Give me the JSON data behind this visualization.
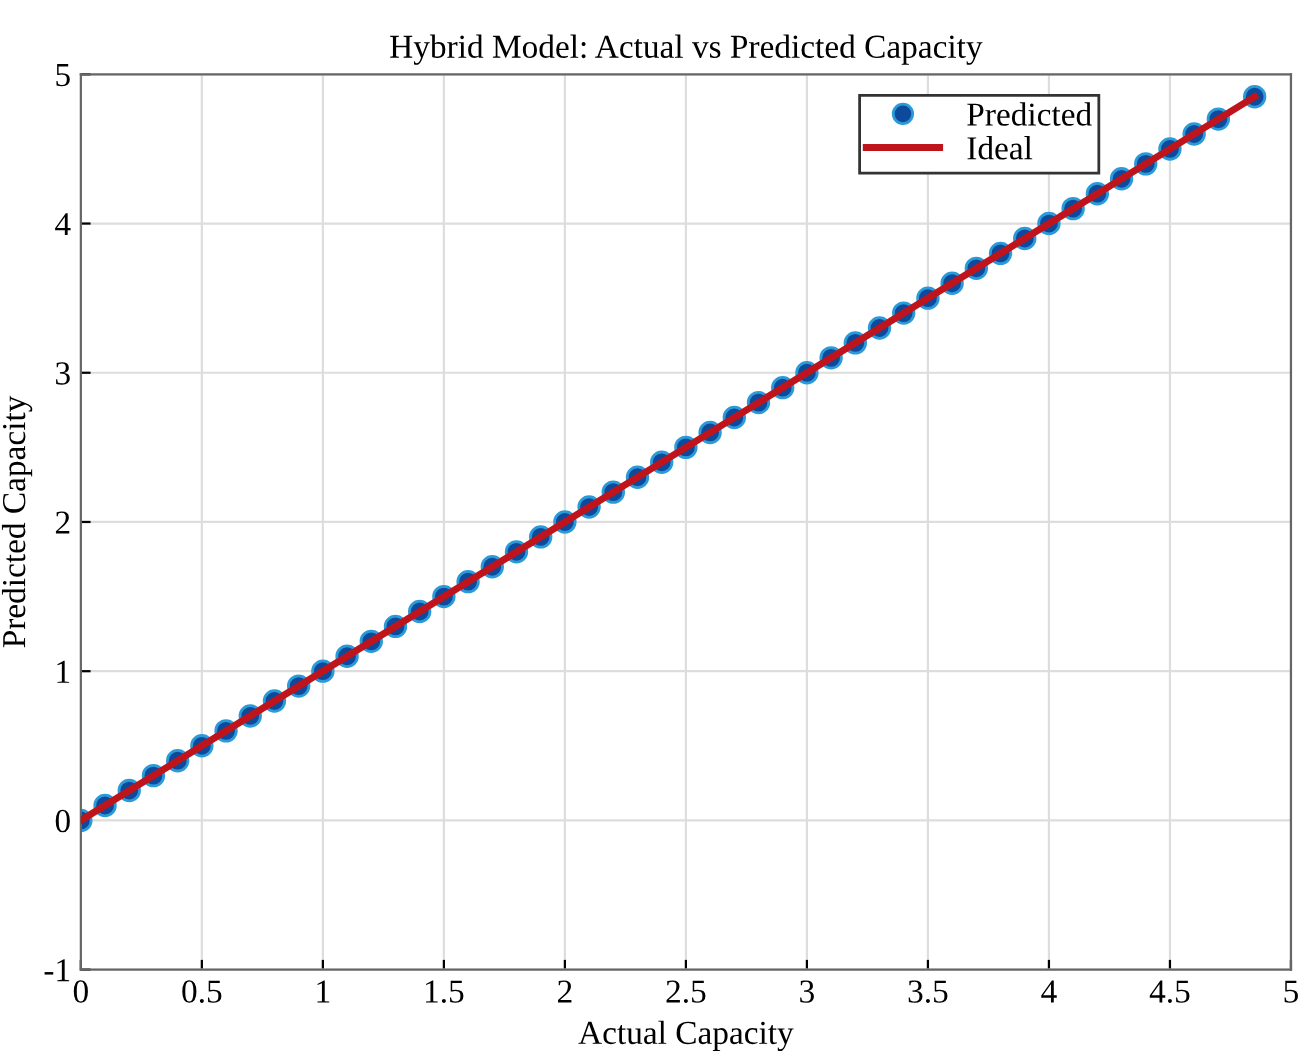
{
  "chart_data": {
    "type": "scatter",
    "title": "Hybrid Model: Actual vs Predicted Capacity",
    "xlabel": "Actual Capacity",
    "ylabel": "Predicted Capacity",
    "series": [
      {
        "name": "Predicted",
        "color": "#0d4a9c",
        "marker": "circle",
        "x": [
          0,
          0.1,
          0.2,
          0.3,
          0.4,
          0.5,
          0.6,
          0.7,
          0.8,
          0.9,
          1.0,
          1.1,
          1.2,
          1.3,
          1.4,
          1.5,
          1.6,
          1.7,
          1.8,
          1.9,
          2.0,
          2.1,
          2.2,
          2.3,
          2.4,
          2.5,
          2.6,
          2.7,
          2.8,
          2.9,
          3.0,
          3.1,
          3.2,
          3.3,
          3.4,
          3.5,
          3.6,
          3.7,
          3.8,
          3.9,
          4.0,
          4.1,
          4.2,
          4.3,
          4.4,
          4.5,
          4.6,
          4.7,
          4.85
        ],
        "values": [
          0,
          0.1,
          0.2,
          0.3,
          0.4,
          0.5,
          0.6,
          0.7,
          0.8,
          0.9,
          1.0,
          1.1,
          1.2,
          1.3,
          1.4,
          1.5,
          1.6,
          1.7,
          1.8,
          1.9,
          2.0,
          2.1,
          2.2,
          2.3,
          2.4,
          2.5,
          2.6,
          2.7,
          2.8,
          2.9,
          3.0,
          3.1,
          3.2,
          3.3,
          3.4,
          3.5,
          3.6,
          3.7,
          3.8,
          3.9,
          4.0,
          4.1,
          4.2,
          4.3,
          4.4,
          4.5,
          4.6,
          4.7,
          4.85
        ]
      },
      {
        "name": "Ideal",
        "type": "line",
        "color": "#c0141c",
        "line_style": "solid",
        "x": [
          0,
          4.85
        ],
        "values": [
          0,
          4.85
        ]
      }
    ],
    "xlim": [
      0,
      5
    ],
    "ylim": [
      -1,
      5
    ],
    "xticks": [
      0,
      0.5,
      1,
      1.5,
      2,
      2.5,
      3,
      3.5,
      4,
      4.5,
      5
    ],
    "yticks": [
      -1,
      0,
      1,
      2,
      3,
      4,
      5
    ],
    "grid": true,
    "legend": "top right"
  }
}
